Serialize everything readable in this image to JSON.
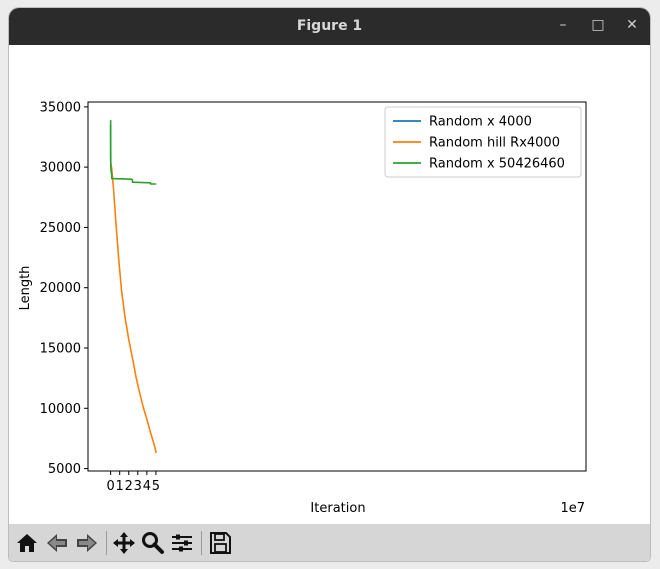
{
  "window": {
    "title": "Figure 1"
  },
  "toolbar": {
    "buttons": [
      "home-icon",
      "back-icon",
      "forward-icon",
      "pan-icon",
      "zoom-icon",
      "configure-icon",
      "save-icon"
    ]
  },
  "chart_data": {
    "type": "line",
    "title": "",
    "xlabel": "Iteration",
    "ylabel": "Length",
    "x_offset_label": "1e7",
    "xlim": [
      -2.5,
      52.5
    ],
    "ylim": [
      4800,
      35400
    ],
    "x_ticks": [
      0,
      1,
      2,
      3,
      4,
      5
    ],
    "x_tick_labels": [
      "0",
      "1",
      "2",
      "3",
      "4",
      "5"
    ],
    "y_ticks": [
      5000,
      10000,
      15000,
      20000,
      25000,
      30000,
      35000
    ],
    "y_tick_labels": [
      "5000",
      "10000",
      "15000",
      "20000",
      "25000",
      "30000",
      "35000"
    ],
    "grid": false,
    "legend": "top-right",
    "series": [
      {
        "name": "Random x 4000",
        "color": "#1f77b4",
        "x": [
          0.0,
          0.001,
          0.002,
          0.004
        ],
        "y": [
          33500,
          31000,
          30600,
          30400
        ]
      },
      {
        "name": "Random hill  Rx4000",
        "color": "#ff7f0e",
        "x": [
          0.0,
          0.05,
          0.1,
          0.3,
          0.6,
          0.9,
          1.2,
          1.6,
          2.0,
          2.4,
          2.8,
          3.2,
          3.6,
          4.0,
          4.4,
          4.8,
          5.04
        ],
        "y": [
          30400,
          30200,
          30000,
          28400,
          25200,
          22300,
          19800,
          17500,
          15700,
          14200,
          12600,
          11300,
          10100,
          9100,
          8000,
          7000,
          6300
        ]
      },
      {
        "name": "Random x 50426460",
        "color": "#2ca02c",
        "x": [
          0.0,
          0.01,
          0.02,
          0.04,
          0.08,
          0.12,
          0.13,
          2.3,
          2.4,
          2.41,
          4.4,
          4.41,
          5.04
        ],
        "y": [
          33900,
          31200,
          30100,
          29700,
          29500,
          29500,
          29050,
          29000,
          28950,
          28750,
          28700,
          28600,
          28600
        ]
      }
    ]
  }
}
